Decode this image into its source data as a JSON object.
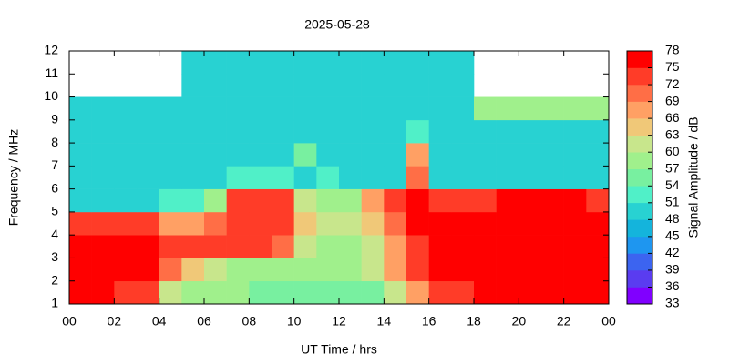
{
  "chart_data": {
    "type": "heatmap",
    "title": "2025-05-28",
    "x_label": "UT Time / hrs",
    "y_label": "Frequency / MHz",
    "colorbar_label": "Signal Amplitude / dB",
    "x": [
      0,
      1,
      2,
      3,
      4,
      5,
      6,
      7,
      8,
      9,
      10,
      11,
      12,
      13,
      14,
      15,
      16,
      17,
      18,
      19,
      20,
      21,
      22,
      23
    ],
    "y": [
      1,
      2,
      3,
      4,
      5,
      6,
      7,
      8,
      9,
      10,
      11
    ],
    "z": [
      [
        75,
        75,
        72,
        72,
        60,
        57,
        57,
        57,
        54,
        54,
        54,
        54,
        54,
        54,
        60,
        66,
        72,
        72,
        75,
        75,
        75,
        75,
        75,
        75
      ],
      [
        75,
        75,
        75,
        75,
        69,
        63,
        60,
        57,
        57,
        57,
        57,
        57,
        57,
        60,
        66,
        72,
        75,
        75,
        75,
        75,
        75,
        75,
        75,
        75
      ],
      [
        75,
        75,
        75,
        75,
        72,
        72,
        72,
        72,
        72,
        69,
        60,
        57,
        57,
        60,
        66,
        72,
        75,
        75,
        75,
        75,
        75,
        75,
        75,
        75
      ],
      [
        72,
        72,
        72,
        72,
        66,
        66,
        69,
        72,
        72,
        72,
        63,
        60,
        60,
        63,
        69,
        75,
        75,
        75,
        75,
        75,
        75,
        75,
        75,
        75
      ],
      [
        48,
        48,
        48,
        48,
        51,
        51,
        57,
        72,
        72,
        72,
        60,
        57,
        57,
        66,
        72,
        75,
        72,
        72,
        72,
        75,
        75,
        75,
        75,
        72
      ],
      [
        48,
        48,
        48,
        48,
        48,
        48,
        48,
        51,
        51,
        51,
        48,
        51,
        48,
        48,
        48,
        69,
        48,
        48,
        48,
        48,
        48,
        48,
        48,
        48
      ],
      [
        48,
        48,
        48,
        48,
        48,
        48,
        48,
        48,
        48,
        48,
        54,
        48,
        48,
        48,
        48,
        66,
        48,
        48,
        48,
        48,
        48,
        48,
        48,
        48
      ],
      [
        48,
        48,
        48,
        48,
        48,
        48,
        48,
        48,
        48,
        48,
        48,
        48,
        48,
        48,
        48,
        51,
        48,
        48,
        48,
        48,
        48,
        48,
        48,
        48
      ],
      [
        48,
        48,
        48,
        48,
        48,
        48,
        48,
        48,
        48,
        48,
        48,
        48,
        48,
        48,
        48,
        48,
        48,
        48,
        57,
        57,
        57,
        57,
        57,
        57
      ],
      [
        null,
        null,
        null,
        null,
        null,
        48,
        48,
        48,
        48,
        48,
        48,
        48,
        48,
        48,
        48,
        48,
        48,
        48,
        null,
        null,
        null,
        null,
        null,
        null
      ],
      [
        null,
        null,
        null,
        null,
        null,
        48,
        48,
        48,
        48,
        48,
        48,
        48,
        48,
        48,
        48,
        48,
        48,
        48,
        null,
        null,
        null,
        null,
        null,
        null
      ]
    ],
    "xlim": [
      0,
      24
    ],
    "ylim": [
      1,
      12
    ],
    "zlim": [
      33,
      78
    ],
    "xticks": [
      {
        "value": 0,
        "label": "00"
      },
      {
        "value": 2,
        "label": "02"
      },
      {
        "value": 4,
        "label": "04"
      },
      {
        "value": 6,
        "label": "06"
      },
      {
        "value": 8,
        "label": "08"
      },
      10,
      12,
      14,
      16,
      18,
      20,
      22,
      {
        "value": 24,
        "label": "00"
      }
    ],
    "yticks": [
      1,
      2,
      3,
      4,
      5,
      6,
      7,
      8,
      9,
      10,
      11,
      12
    ],
    "zticks": [
      33,
      36,
      39,
      42,
      45,
      48,
      51,
      54,
      57,
      60,
      63,
      66,
      69,
      72,
      75,
      78
    ],
    "colormap": [
      "#8000ff",
      "#5a3cf0",
      "#3c64f0",
      "#1e96f0",
      "#14b4dc",
      "#28d2d2",
      "#50f0c8",
      "#78f0a0",
      "#a0f08c",
      "#c8e68c",
      "#f0c878",
      "#ffa064",
      "#ff6e46",
      "#ff3c28",
      "#ff0000"
    ]
  }
}
